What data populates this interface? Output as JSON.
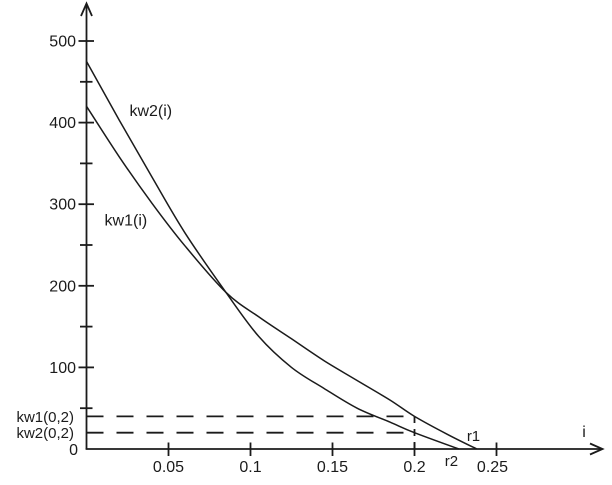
{
  "chart_data": {
    "type": "line",
    "title": "",
    "xlabel": "i",
    "ylabel": "",
    "background_color": "#ffffff",
    "stroke_color": "#1b1b1b",
    "grid": false,
    "legend_position": "none",
    "x_axis": {
      "min": 0,
      "max": 0.262,
      "arrow": true,
      "arrow_label": "i",
      "ticks": [
        {
          "value": 0.05,
          "label": "0.05"
        },
        {
          "value": 0.1,
          "label": "0.1"
        },
        {
          "value": 0.15,
          "label": "0.15"
        },
        {
          "value": 0.2,
          "label": "0.2"
        },
        {
          "value": 0.25,
          "label": "0.25"
        }
      ]
    },
    "y_axis": {
      "min": 0,
      "max": 540,
      "arrow": true,
      "origin_label": "0",
      "major_ticks": [
        {
          "value": 500,
          "label": "500"
        },
        {
          "value": 400,
          "label": "400"
        },
        {
          "value": 300,
          "label": "300"
        },
        {
          "value": 200,
          "label": "200"
        },
        {
          "value": 100,
          "label": "100"
        }
      ],
      "minor_tick_values": [
        450,
        350,
        250,
        150,
        50
      ]
    },
    "series": [
      {
        "name": "kw1",
        "label": "kw1(i)",
        "label_anchor": {
          "i": 0.011,
          "v": 274
        },
        "points": [
          [
            0,
            420
          ],
          [
            0.02,
            358
          ],
          [
            0.04,
            301
          ],
          [
            0.06,
            249
          ],
          [
            0.085,
            192
          ],
          [
            0.105,
            162
          ],
          [
            0.125,
            135
          ],
          [
            0.145,
            108
          ],
          [
            0.165,
            84
          ],
          [
            0.185,
            60
          ],
          [
            0.2,
            40
          ],
          [
            0.22,
            18
          ],
          [
            0.238,
            0
          ]
        ]
      },
      {
        "name": "kw2",
        "label": "kw2(i)",
        "label_anchor": {
          "i": 0.0262,
          "v": 408
        },
        "points": [
          [
            0,
            475
          ],
          [
            0.02,
            403
          ],
          [
            0.04,
            333
          ],
          [
            0.06,
            265
          ],
          [
            0.085,
            192
          ],
          [
            0.105,
            138
          ],
          [
            0.125,
            100
          ],
          [
            0.145,
            74
          ],
          [
            0.165,
            50
          ],
          [
            0.185,
            33
          ],
          [
            0.2,
            20
          ],
          [
            0.227,
            0
          ]
        ]
      }
    ],
    "annotations": {
      "crossing_point": {
        "i": 0.085,
        "v": 192
      },
      "dashed_levels": [
        {
          "label": "kw1(0,2)",
          "value": 40,
          "from_i": 0,
          "to_i": 0.2
        },
        {
          "label": "kw2(0,2)",
          "value": 20,
          "from_i": 0,
          "to_i": 0.2
        }
      ],
      "dashed_vertical": {
        "i": 0.2,
        "from_value": 0,
        "to_value": 40
      },
      "roots": [
        {
          "label": "r1",
          "i": 0.238,
          "label_position": "above-axis"
        },
        {
          "label": "r2",
          "i": 0.227,
          "label_position": "below-axis"
        }
      ]
    }
  }
}
